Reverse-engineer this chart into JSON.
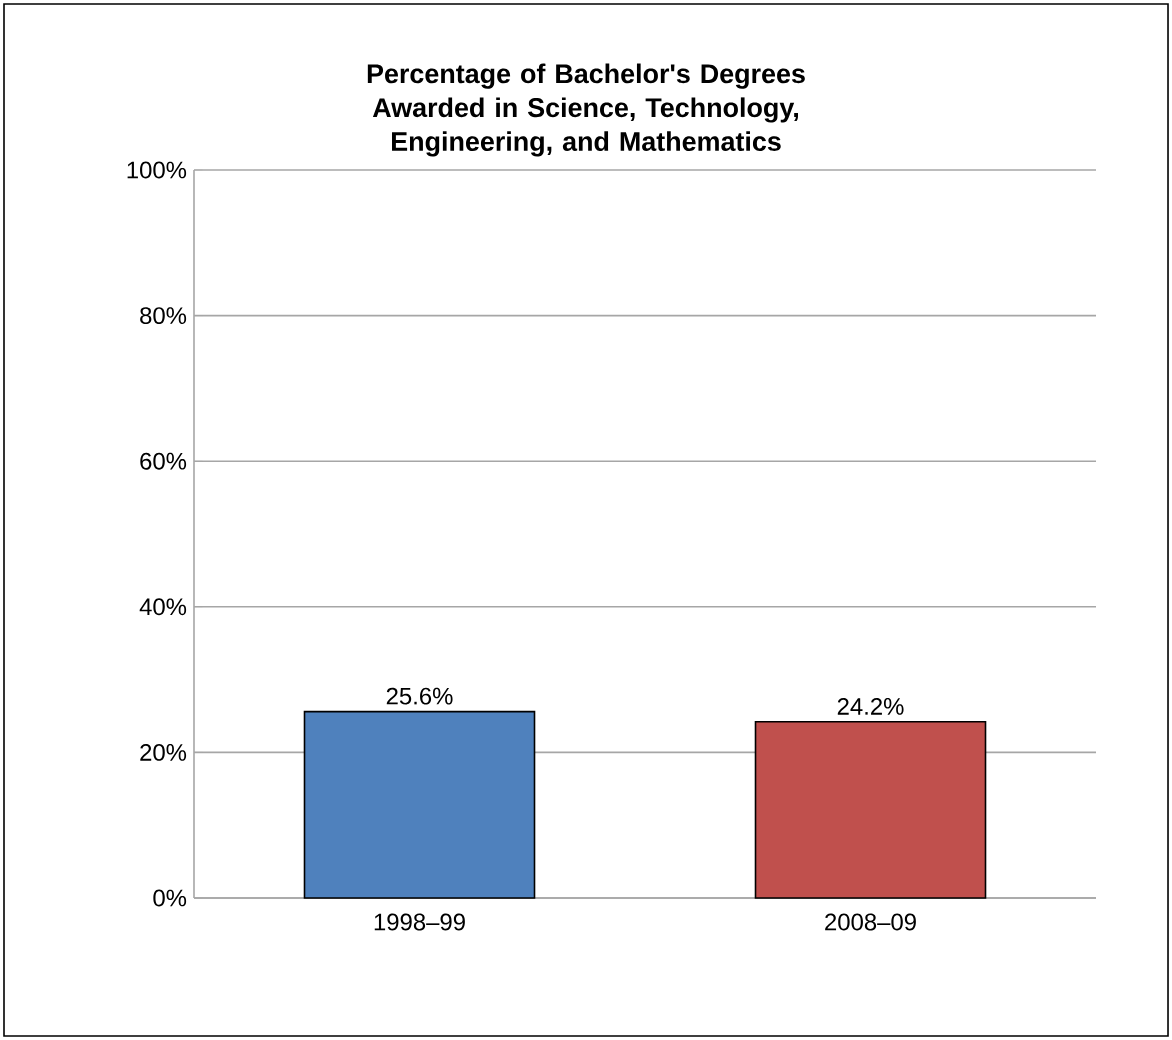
{
  "chart_data": {
    "type": "bar",
    "title": "Percentage of Bachelor's Degrees Awarded in Science, Technology, Engineering, and Mathematics",
    "categories": [
      "1998–99",
      "2008–09"
    ],
    "values": [
      25.6,
      24.2
    ],
    "colors": [
      "#4f81bd",
      "#c0504d"
    ],
    "value_labels": [
      "25.6%",
      "24.2%"
    ],
    "ylim": [
      0,
      100
    ],
    "yticks": [
      {
        "value": 0,
        "label": "0%"
      },
      {
        "value": 20,
        "label": "20%"
      },
      {
        "value": 40,
        "label": "40%"
      },
      {
        "value": 60,
        "label": "60%"
      },
      {
        "value": 80,
        "label": "80%"
      },
      {
        "value": 100,
        "label": "100%"
      }
    ],
    "grid": "y"
  }
}
